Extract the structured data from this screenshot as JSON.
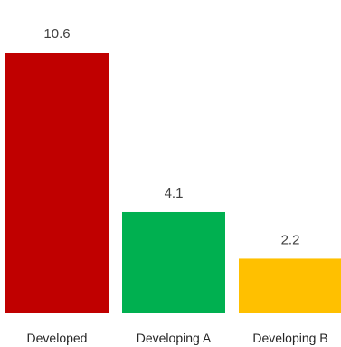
{
  "chart_data": {
    "type": "bar",
    "categories": [
      "Developed",
      "Developing A",
      "Developing B"
    ],
    "values": [
      10.6,
      4.1,
      2.2
    ],
    "data_labels": [
      "10.6",
      "4.1",
      "2.2"
    ],
    "colors": [
      "#c00000",
      "#00b050",
      "#ffc000"
    ],
    "ylim": [
      0,
      10.6
    ],
    "grid": false,
    "legend": "none",
    "title": "",
    "xlabel": "",
    "ylabel": ""
  }
}
